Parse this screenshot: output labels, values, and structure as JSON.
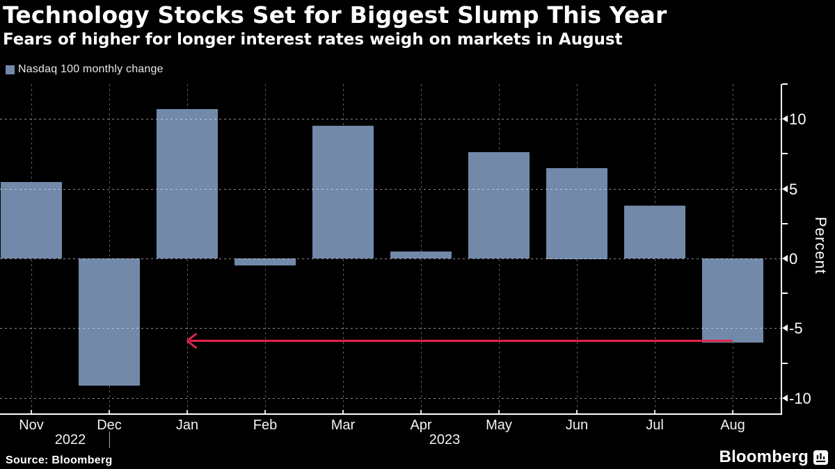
{
  "header": {
    "title": "Technology Stocks Set for Biggest Slump This Year",
    "subtitle": "Fears of higher for longer interest rates weigh on markets in August"
  },
  "legend": {
    "label": "Nasdaq 100 monthly change",
    "swatch_color": "#7389aa"
  },
  "chart_data": {
    "type": "bar",
    "title": "Technology Stocks Set for Biggest Slump This Year",
    "subtitle": "Fears of higher for longer interest rates weigh on markets in August",
    "series_name": "Nasdaq 100 monthly change",
    "categories": [
      "Nov",
      "Dec",
      "Jan",
      "Feb",
      "Mar",
      "Apr",
      "May",
      "Jun",
      "Jul",
      "Aug"
    ],
    "values": [
      5.5,
      -9.1,
      10.7,
      -0.5,
      9.5,
      0.5,
      7.6,
      6.5,
      3.8,
      -6.0
    ],
    "unit": "percent",
    "ylabel": "Percent",
    "ylim": [
      -11.1,
      12.5
    ],
    "y_major_ticks": [
      10,
      5,
      0,
      -5,
      -10
    ],
    "y_minor_ticks": [
      12.5,
      7.5,
      2.5,
      -2.5,
      -7.5
    ],
    "axis_position": "right",
    "legend_position": "top-left",
    "grid": {
      "horizontal": "dotted-at-major-ticks",
      "vertical": "dotted-at-month-centers"
    },
    "year_groups": [
      {
        "label": "2022",
        "from": "Nov",
        "to": "Dec",
        "divider_after": true
      },
      {
        "label": "2023",
        "from": "Jan",
        "to": "Aug",
        "divider_after": false
      }
    ],
    "bar_color": "#7389aa",
    "background_color": "#000000",
    "annotation_arrow": {
      "shape": "horizontal-left-arrow",
      "value": -5.9,
      "from_category": "Aug",
      "to_category": "Jan",
      "color": "#e5234d"
    }
  },
  "footer": {
    "source": "Source: Bloomberg",
    "brand": "Bloomberg"
  }
}
